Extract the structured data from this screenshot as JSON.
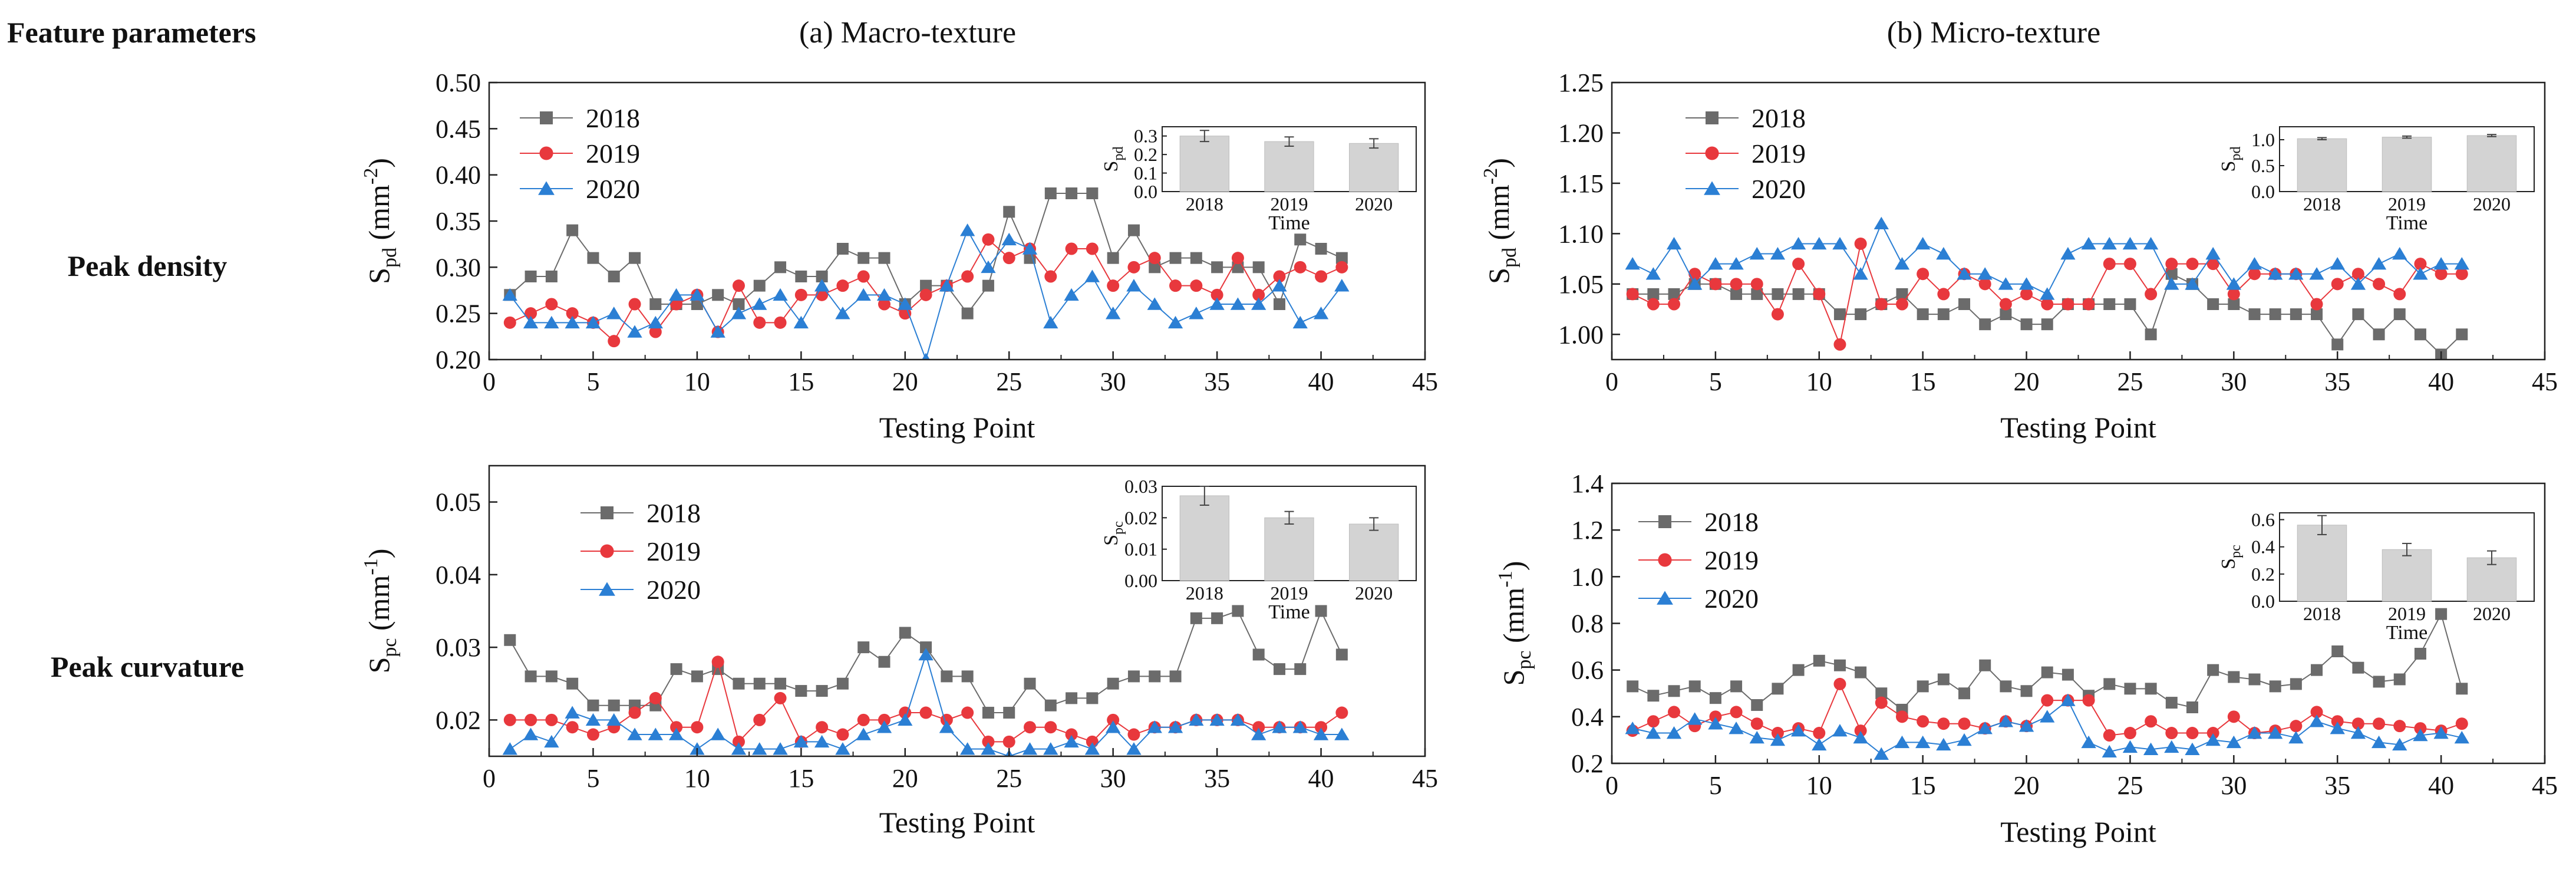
{
  "header": {
    "feature_parameters": "Feature parameters",
    "col_macro": "(a) Macro-texture",
    "col_micro": "(b) Micro-texture",
    "row_peak_density": "Peak density",
    "row_peak_curvature": "Peak curvature"
  },
  "colors": {
    "s2018": "#6b6b6b",
    "s2019": "#e8383d",
    "s2020": "#2b7fd4",
    "bar": "#d3d3d3"
  },
  "chart_data": [
    {
      "id": "macro-spd",
      "type": "line",
      "title": "(a) Macro-texture",
      "xlabel": "Testing Point",
      "ylabel_main": "S",
      "ylabel_sub": "pd",
      "ylabel_unit": " (mm",
      "ylabel_exp": "-2",
      "ylabel_close": ")",
      "xlim": [
        0,
        45
      ],
      "ylim": [
        0.2,
        0.5
      ],
      "xticks": [
        "0",
        "5",
        "10",
        "15",
        "20",
        "25",
        "30",
        "35",
        "40",
        "45"
      ],
      "yticks": [
        "0.20",
        "0.25",
        "0.30",
        "0.35",
        "0.40",
        "0.45",
        "0.50"
      ],
      "x": [
        1,
        2,
        3,
        4,
        5,
        6,
        7,
        8,
        9,
        10,
        11,
        12,
        13,
        14,
        15,
        16,
        17,
        18,
        19,
        20,
        21,
        22,
        23,
        24,
        25,
        26,
        27,
        28,
        29,
        30,
        31,
        32,
        33,
        34,
        35,
        36,
        37,
        38,
        39,
        40,
        41
      ],
      "series": [
        {
          "name": "2018",
          "values": [
            0.27,
            0.29,
            0.29,
            0.34,
            0.31,
            0.29,
            0.31,
            0.26,
            0.26,
            0.26,
            0.27,
            0.26,
            0.28,
            0.3,
            0.29,
            0.29,
            0.32,
            0.31,
            0.31,
            0.26,
            0.28,
            0.28,
            0.25,
            0.28,
            0.36,
            0.31,
            0.38,
            0.38,
            0.38,
            0.31,
            0.34,
            0.3,
            0.31,
            0.31,
            0.3,
            0.3,
            0.3,
            0.26,
            0.33,
            0.32,
            0.31
          ]
        },
        {
          "name": "2019",
          "values": [
            0.24,
            0.25,
            0.26,
            0.25,
            0.24,
            0.22,
            0.26,
            0.23,
            0.26,
            0.27,
            0.23,
            0.28,
            0.24,
            0.24,
            0.27,
            0.27,
            0.28,
            0.29,
            0.26,
            0.25,
            0.27,
            0.28,
            0.29,
            0.33,
            0.31,
            0.32,
            0.29,
            0.32,
            0.32,
            0.28,
            0.3,
            0.31,
            0.28,
            0.28,
            0.27,
            0.31,
            0.27,
            0.29,
            0.3,
            0.29,
            0.3
          ]
        },
        {
          "name": "2020",
          "values": [
            0.27,
            0.24,
            0.24,
            0.24,
            0.24,
            0.25,
            0.23,
            0.24,
            0.27,
            0.27,
            0.23,
            0.25,
            0.26,
            0.27,
            0.24,
            0.28,
            0.25,
            0.27,
            0.27,
            0.26,
            0.2,
            0.28,
            0.34,
            0.3,
            0.33,
            0.32,
            0.24,
            0.27,
            0.29,
            0.25,
            0.28,
            0.26,
            0.24,
            0.25,
            0.26,
            0.26,
            0.26,
            0.28,
            0.24,
            0.25,
            0.28
          ]
        }
      ],
      "inset": {
        "categories": [
          "2018",
          "2019",
          "2020"
        ],
        "values": [
          0.3,
          0.27,
          0.26
        ],
        "errors": [
          0.03,
          0.025,
          0.025
        ],
        "ylim": [
          0.0,
          0.35
        ],
        "yticks": [
          "0.0",
          "0.1",
          "0.2",
          "0.3"
        ],
        "xlabel": "Time",
        "ylabel_main": "S",
        "ylabel_sub": "pd"
      }
    },
    {
      "id": "micro-spd",
      "type": "line",
      "title": "(b) Micro-texture",
      "xlabel": "Testing Point",
      "ylabel_main": "S",
      "ylabel_sub": "pd",
      "ylabel_unit": " (mm",
      "ylabel_exp": "-2",
      "ylabel_close": ")",
      "xlim": [
        0,
        45
      ],
      "ylim": [
        0.975,
        1.25
      ],
      "xticks": [
        "0",
        "5",
        "10",
        "15",
        "20",
        "25",
        "30",
        "35",
        "40",
        "45"
      ],
      "yticks": [
        "1.00",
        "1.05",
        "1.10",
        "1.15",
        "1.20",
        "1.25"
      ],
      "x": [
        1,
        2,
        3,
        4,
        5,
        6,
        7,
        8,
        9,
        10,
        11,
        12,
        13,
        14,
        15,
        16,
        17,
        18,
        19,
        20,
        21,
        22,
        23,
        24,
        25,
        26,
        27,
        28,
        29,
        30,
        31,
        32,
        33,
        34,
        35,
        36,
        37,
        38,
        39,
        40,
        41
      ],
      "series": [
        {
          "name": "2018",
          "values": [
            1.04,
            1.04,
            1.04,
            1.05,
            1.05,
            1.04,
            1.04,
            1.04,
            1.04,
            1.04,
            1.02,
            1.02,
            1.03,
            1.04,
            1.02,
            1.02,
            1.03,
            1.01,
            1.02,
            1.01,
            1.01,
            1.03,
            1.03,
            1.03,
            1.03,
            1.0,
            1.06,
            1.05,
            1.03,
            1.03,
            1.02,
            1.02,
            1.02,
            1.02,
            0.99,
            1.02,
            1.0,
            1.02,
            1.0,
            0.98,
            1.0
          ]
        },
        {
          "name": "2019",
          "values": [
            1.04,
            1.03,
            1.03,
            1.06,
            1.05,
            1.05,
            1.05,
            1.02,
            1.07,
            1.04,
            0.99,
            1.09,
            1.03,
            1.03,
            1.06,
            1.04,
            1.06,
            1.05,
            1.03,
            1.04,
            1.03,
            1.03,
            1.03,
            1.07,
            1.07,
            1.04,
            1.07,
            1.07,
            1.07,
            1.04,
            1.06,
            1.06,
            1.06,
            1.03,
            1.05,
            1.06,
            1.05,
            1.04,
            1.07,
            1.06,
            1.06
          ]
        },
        {
          "name": "2020",
          "values": [
            1.07,
            1.06,
            1.09,
            1.05,
            1.07,
            1.07,
            1.08,
            1.08,
            1.09,
            1.09,
            1.09,
            1.06,
            1.11,
            1.07,
            1.09,
            1.08,
            1.06,
            1.06,
            1.05,
            1.05,
            1.04,
            1.08,
            1.09,
            1.09,
            1.09,
            1.09,
            1.05,
            1.05,
            1.08,
            1.05,
            1.07,
            1.06,
            1.06,
            1.06,
            1.07,
            1.05,
            1.07,
            1.08,
            1.06,
            1.07,
            1.07
          ]
        }
      ],
      "inset": {
        "categories": [
          "2018",
          "2019",
          "2020"
        ],
        "values": [
          1.02,
          1.05,
          1.08
        ],
        "errors": [
          0.02,
          0.02,
          0.02
        ],
        "ylim": [
          0.0,
          1.25
        ],
        "yticks": [
          "0.0",
          "0.5",
          "1.0"
        ],
        "xlabel": "Time",
        "ylabel_main": "S",
        "ylabel_sub": "pd"
      }
    },
    {
      "id": "macro-spc",
      "type": "line",
      "title": "",
      "xlabel": "Testing Point",
      "ylabel_main": "S",
      "ylabel_sub": "pc",
      "ylabel_unit": " (mm",
      "ylabel_exp": "-1",
      "ylabel_close": ")",
      "xlim": [
        0,
        45
      ],
      "ylim": [
        0.015,
        0.055
      ],
      "xticks": [
        "0",
        "5",
        "10",
        "15",
        "20",
        "25",
        "30",
        "35",
        "40",
        "45"
      ],
      "yticks": [
        "0.02",
        "0.03",
        "0.04",
        "0.05"
      ],
      "x": [
        1,
        2,
        3,
        4,
        5,
        6,
        7,
        8,
        9,
        10,
        11,
        12,
        13,
        14,
        15,
        16,
        17,
        18,
        19,
        20,
        21,
        22,
        23,
        24,
        25,
        26,
        27,
        28,
        29,
        30,
        31,
        32,
        33,
        34,
        35,
        36,
        37,
        38,
        39,
        40,
        41
      ],
      "series": [
        {
          "name": "2018",
          "values": [
            0.031,
            0.026,
            0.026,
            0.025,
            0.022,
            0.022,
            0.022,
            0.022,
            0.027,
            0.026,
            0.027,
            0.025,
            0.025,
            0.025,
            0.024,
            0.024,
            0.025,
            0.03,
            0.028,
            0.032,
            0.03,
            0.026,
            0.026,
            0.021,
            0.021,
            0.025,
            0.022,
            0.023,
            0.023,
            0.025,
            0.026,
            0.026,
            0.026,
            0.034,
            0.034,
            0.035,
            0.029,
            0.027,
            0.027,
            0.035,
            0.029
          ]
        },
        {
          "name": "2019",
          "values": [
            0.02,
            0.02,
            0.02,
            0.019,
            0.018,
            0.019,
            0.021,
            0.023,
            0.019,
            0.019,
            0.028,
            0.017,
            0.02,
            0.023,
            0.017,
            0.019,
            0.018,
            0.02,
            0.02,
            0.021,
            0.021,
            0.02,
            0.021,
            0.017,
            0.017,
            0.019,
            0.019,
            0.018,
            0.017,
            0.02,
            0.018,
            0.019,
            0.019,
            0.02,
            0.02,
            0.02,
            0.019,
            0.019,
            0.019,
            0.019,
            0.021
          ]
        },
        {
          "name": "2020",
          "values": [
            0.016,
            0.018,
            0.017,
            0.021,
            0.02,
            0.02,
            0.018,
            0.018,
            0.018,
            0.016,
            0.018,
            0.016,
            0.016,
            0.016,
            0.017,
            0.017,
            0.016,
            0.018,
            0.019,
            0.02,
            0.029,
            0.019,
            0.016,
            0.016,
            0.015,
            0.016,
            0.016,
            0.017,
            0.016,
            0.019,
            0.016,
            0.019,
            0.019,
            0.02,
            0.02,
            0.02,
            0.018,
            0.019,
            0.019,
            0.018,
            0.018
          ]
        }
      ],
      "inset": {
        "categories": [
          "2018",
          "2019",
          "2020"
        ],
        "values": [
          0.027,
          0.02,
          0.018
        ],
        "errors": [
          0.003,
          0.002,
          0.002
        ],
        "ylim": [
          0.0,
          0.03
        ],
        "yticks": [
          "0.00",
          "0.01",
          "0.02",
          "0.03"
        ],
        "xlabel": "Time",
        "ylabel_main": "S",
        "ylabel_sub": "pc"
      }
    },
    {
      "id": "micro-spc",
      "type": "line",
      "title": "",
      "xlabel": "Testing Point",
      "ylabel_main": "S",
      "ylabel_sub": "pc",
      "ylabel_unit": " (mm",
      "ylabel_exp": "-1",
      "ylabel_close": ")",
      "xlim": [
        0,
        45
      ],
      "ylim": [
        0.2,
        1.4
      ],
      "xticks": [
        "0",
        "5",
        "10",
        "15",
        "20",
        "25",
        "30",
        "35",
        "40",
        "45"
      ],
      "yticks": [
        "0.2",
        "0.4",
        "0.6",
        "0.8",
        "1.0",
        "1.2",
        "1.4"
      ],
      "x": [
        1,
        2,
        3,
        4,
        5,
        6,
        7,
        8,
        9,
        10,
        11,
        12,
        13,
        14,
        15,
        16,
        17,
        18,
        19,
        20,
        21,
        22,
        23,
        24,
        25,
        26,
        27,
        28,
        29,
        30,
        31,
        32,
        33,
        34,
        35,
        36,
        37,
        38,
        39,
        40,
        41
      ],
      "series": [
        {
          "name": "2018",
          "values": [
            0.53,
            0.49,
            0.51,
            0.53,
            0.48,
            0.53,
            0.45,
            0.52,
            0.6,
            0.64,
            0.62,
            0.59,
            0.5,
            0.43,
            0.53,
            0.56,
            0.5,
            0.62,
            0.53,
            0.51,
            0.59,
            0.58,
            0.49,
            0.54,
            0.52,
            0.52,
            0.46,
            0.44,
            0.6,
            0.57,
            0.56,
            0.53,
            0.54,
            0.6,
            0.68,
            0.61,
            0.55,
            0.56,
            0.67,
            0.84,
            0.52
          ]
        },
        {
          "name": "2019",
          "values": [
            0.34,
            0.38,
            0.42,
            0.36,
            0.4,
            0.42,
            0.37,
            0.33,
            0.35,
            0.33,
            0.54,
            0.34,
            0.46,
            0.4,
            0.38,
            0.37,
            0.37,
            0.35,
            0.38,
            0.36,
            0.47,
            0.47,
            0.47,
            0.32,
            0.33,
            0.38,
            0.33,
            0.33,
            0.33,
            0.4,
            0.33,
            0.34,
            0.36,
            0.42,
            0.38,
            0.37,
            0.37,
            0.36,
            0.35,
            0.34,
            0.37
          ]
        },
        {
          "name": "2020",
          "values": [
            0.35,
            0.33,
            0.33,
            0.39,
            0.37,
            0.35,
            0.31,
            0.3,
            0.34,
            0.28,
            0.34,
            0.31,
            0.24,
            0.29,
            0.29,
            0.28,
            0.3,
            0.35,
            0.38,
            0.36,
            0.4,
            0.47,
            0.29,
            0.25,
            0.27,
            0.26,
            0.27,
            0.26,
            0.3,
            0.29,
            0.33,
            0.33,
            0.31,
            0.38,
            0.35,
            0.33,
            0.29,
            0.28,
            0.32,
            0.33,
            0.31
          ]
        }
      ],
      "inset": {
        "categories": [
          "2018",
          "2019",
          "2020"
        ],
        "values": [
          0.56,
          0.38,
          0.32
        ],
        "errors": [
          0.07,
          0.045,
          0.05
        ],
        "ylim": [
          0.0,
          0.65
        ],
        "yticks": [
          "0.0",
          "0.2",
          "0.4",
          "0.6"
        ],
        "xlabel": "Time",
        "ylabel_main": "S",
        "ylabel_sub": "pc"
      }
    }
  ]
}
